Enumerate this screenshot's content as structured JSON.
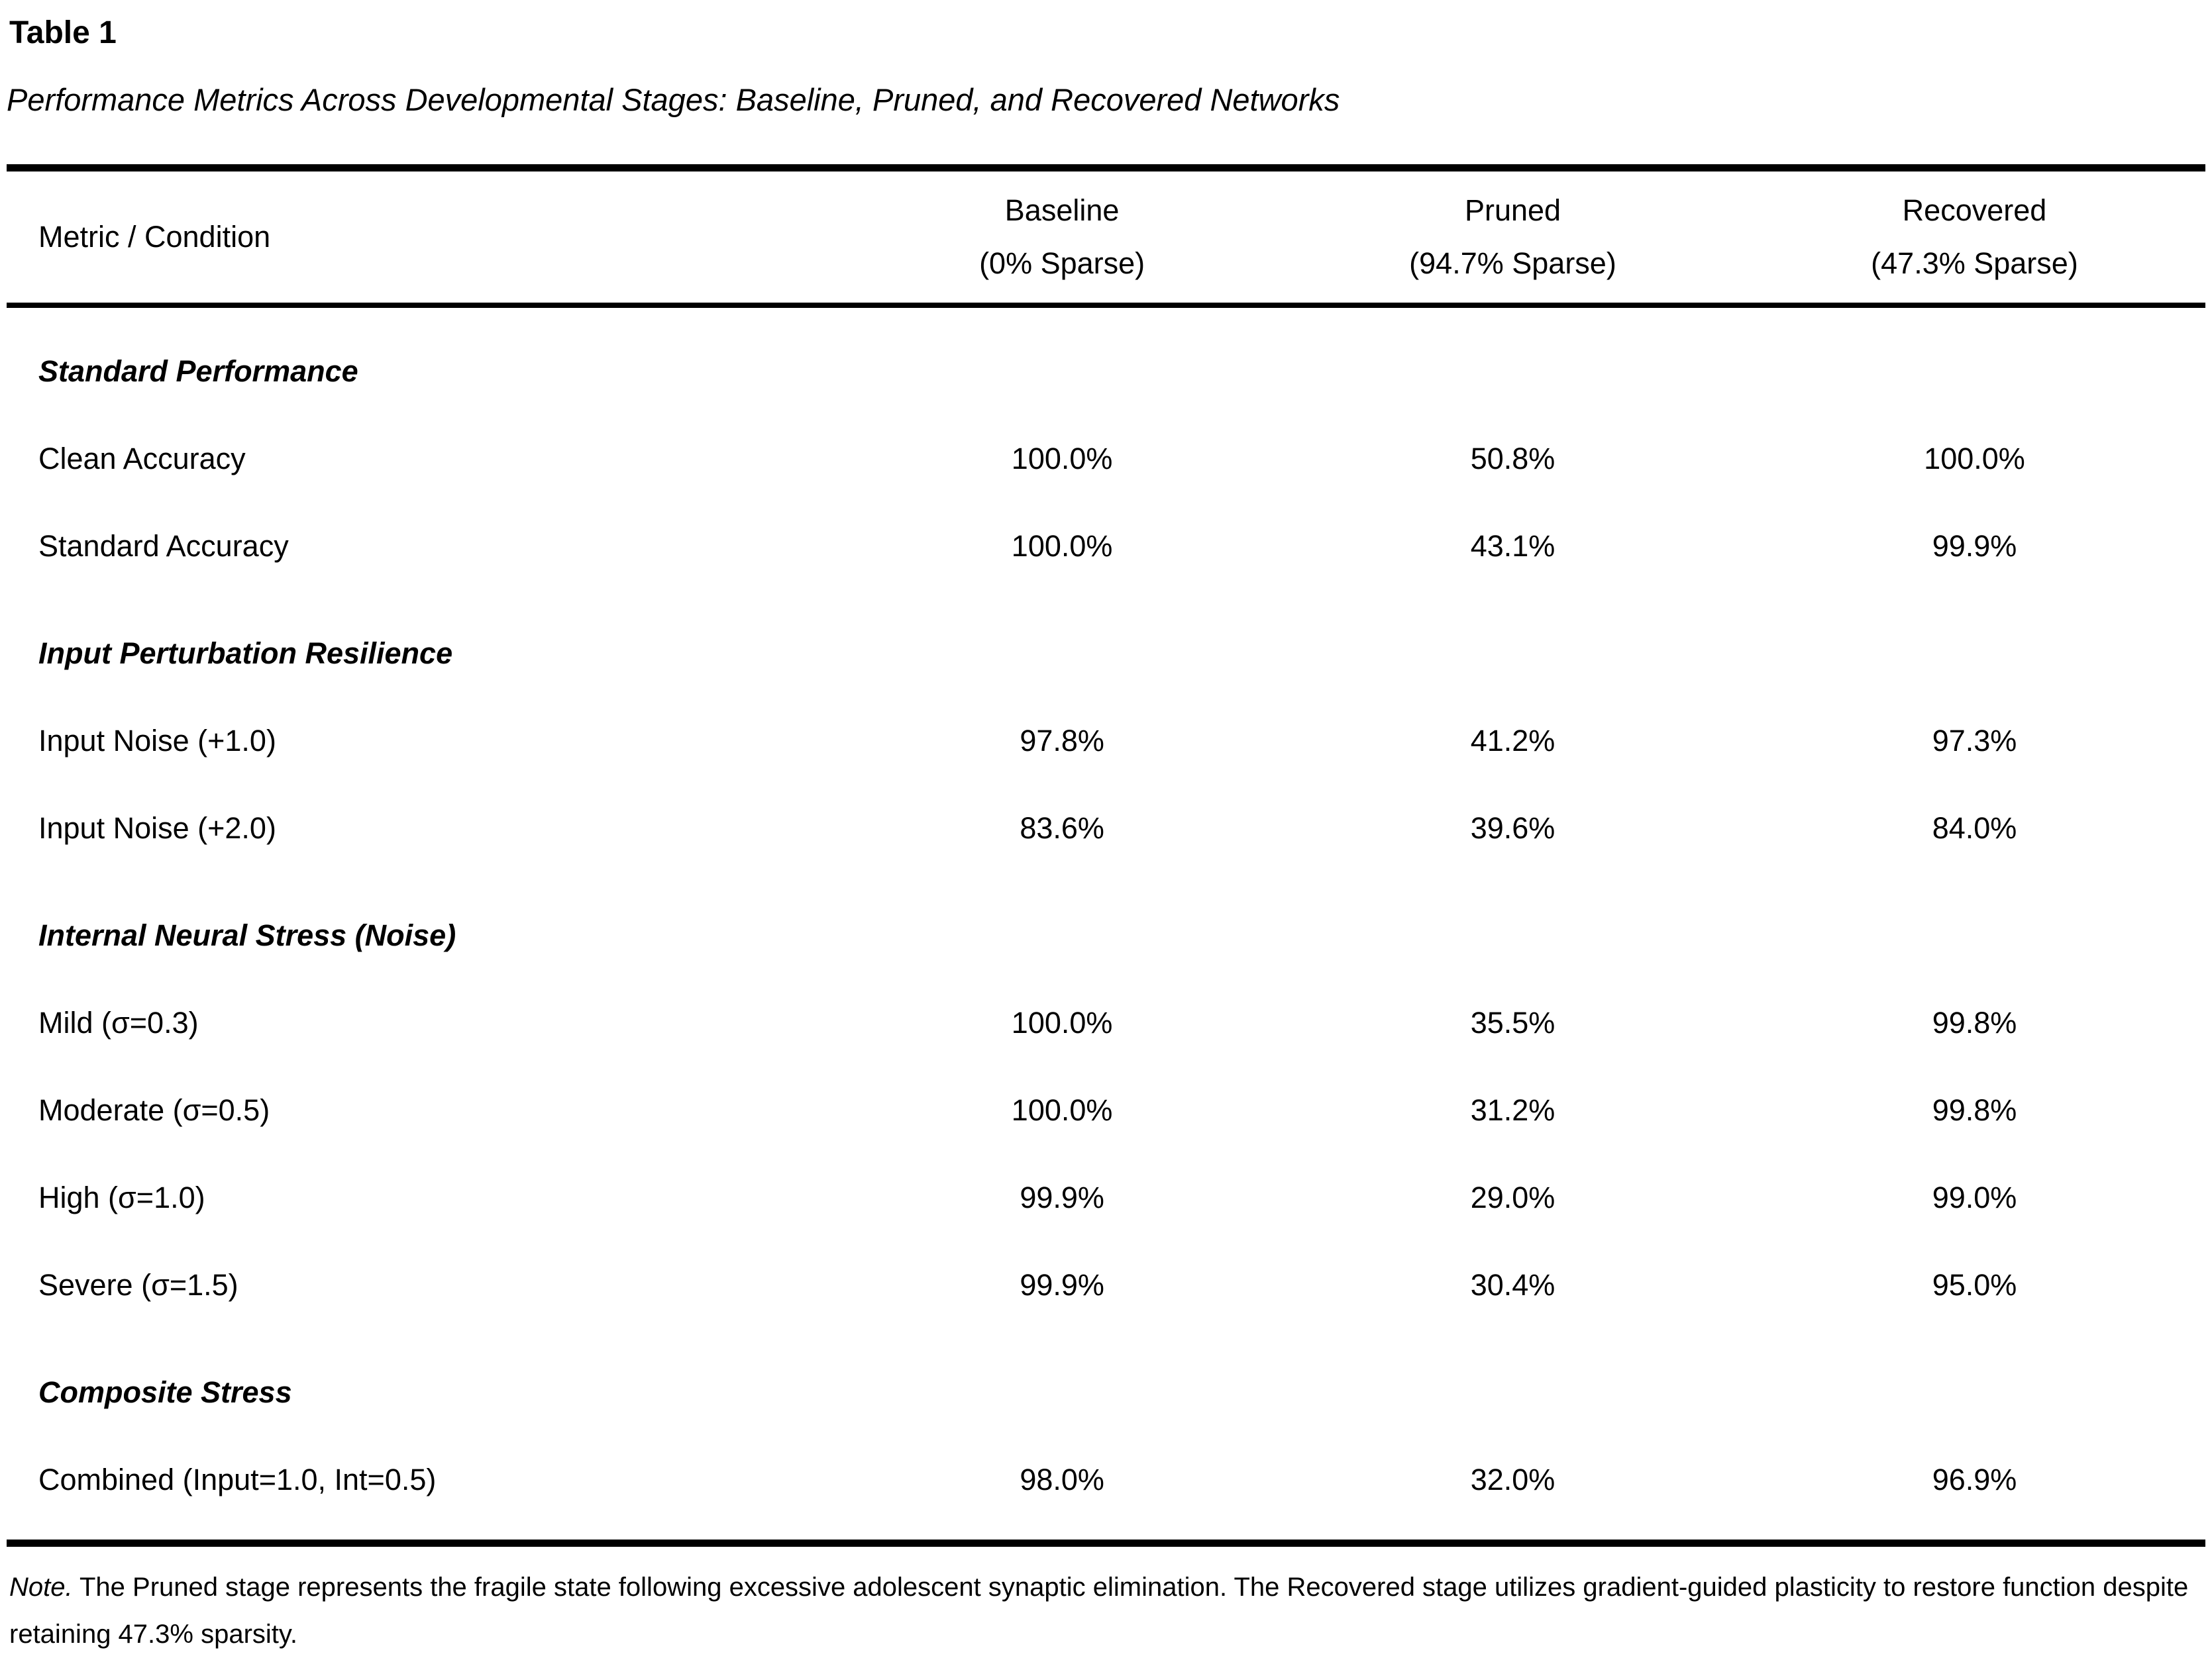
{
  "table": {
    "number": "Table 1",
    "title": "Performance Metrics Across Developmental Stages: Baseline, Pruned, and Recovered Networks",
    "header": {
      "metric_col": "Metric / Condition",
      "cols": [
        {
          "line1": "Baseline",
          "line2": "(0% Sparse)"
        },
        {
          "line1": "Pruned",
          "line2": "(94.7% Sparse)"
        },
        {
          "line1": "Recovered",
          "line2": "(47.3% Sparse)"
        }
      ]
    },
    "sections": [
      {
        "header": "Standard Performance",
        "rows": [
          {
            "label": "Clean Accuracy",
            "values": [
              "100.0%",
              "50.8%",
              "100.0%"
            ]
          },
          {
            "label": "Standard Accuracy",
            "values": [
              "100.0%",
              "43.1%",
              "99.9%"
            ]
          }
        ]
      },
      {
        "header": "Input Perturbation Resilience",
        "rows": [
          {
            "label": "Input Noise (+1.0)",
            "values": [
              "97.8%",
              "41.2%",
              "97.3%"
            ]
          },
          {
            "label": "Input Noise (+2.0)",
            "values": [
              "83.6%",
              "39.6%",
              "84.0%"
            ]
          }
        ]
      },
      {
        "header": "Internal Neural Stress (Noise)",
        "rows": [
          {
            "label": "Mild (σ=0.3)",
            "values": [
              "100.0%",
              "35.5%",
              "99.8%"
            ]
          },
          {
            "label": "Moderate (σ=0.5)",
            "values": [
              "100.0%",
              "31.2%",
              "99.8%"
            ]
          },
          {
            "label": "High (σ=1.0)",
            "values": [
              "99.9%",
              "29.0%",
              "99.0%"
            ]
          },
          {
            "label": "Severe (σ=1.5)",
            "values": [
              "99.9%",
              "30.4%",
              "95.0%"
            ]
          }
        ]
      },
      {
        "header": "Composite Stress",
        "rows": [
          {
            "label": "Combined (Input=1.0, Int=0.5)",
            "values": [
              "98.0%",
              "32.0%",
              "96.9%"
            ]
          }
        ]
      }
    ],
    "note": {
      "label": "Note.",
      "text": " The Pruned stage represents the fragile state following excessive adolescent synaptic elimination. The Recovered stage utilizes gradient-guided plasticity to restore function despite retaining 47.3% sparsity."
    }
  },
  "chart_data": {
    "type": "table",
    "title": "Performance Metrics Across Developmental Stages: Baseline, Pruned, and Recovered Networks",
    "columns": [
      "Metric / Condition",
      "Baseline (0% Sparse)",
      "Pruned (94.7% Sparse)",
      "Recovered (47.3% Sparse)"
    ],
    "rows": [
      [
        "Clean Accuracy",
        100.0,
        50.8,
        100.0
      ],
      [
        "Standard Accuracy",
        100.0,
        43.1,
        99.9
      ],
      [
        "Input Noise (+1.0)",
        97.8,
        41.2,
        97.3
      ],
      [
        "Input Noise (+2.0)",
        83.6,
        39.6,
        84.0
      ],
      [
        "Mild (σ=0.3)",
        100.0,
        35.5,
        99.8
      ],
      [
        "Moderate (σ=0.5)",
        100.0,
        31.2,
        99.8
      ],
      [
        "High (σ=1.0)",
        99.9,
        29.0,
        99.0
      ],
      [
        "Severe (σ=1.5)",
        99.9,
        30.4,
        95.0
      ],
      [
        "Combined (Input=1.0, Int=0.5)",
        98.0,
        32.0,
        96.9
      ]
    ],
    "units": "percent accuracy",
    "section_groups": [
      "Standard Performance",
      "Input Perturbation Resilience",
      "Internal Neural Stress (Noise)",
      "Composite Stress"
    ]
  }
}
